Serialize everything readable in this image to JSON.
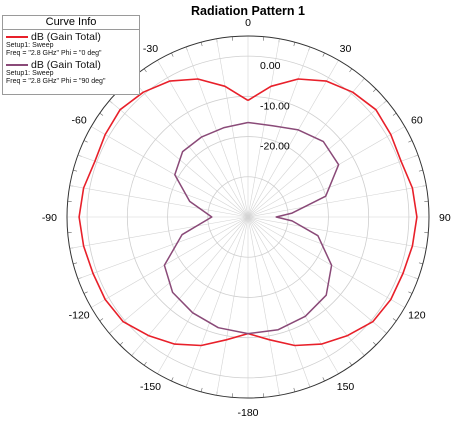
{
  "chart_data": {
    "type": "polar-line",
    "title": "Radiation Pattern 1",
    "angle_ticks": [
      {
        "angle": 0,
        "label": "0"
      },
      {
        "angle": 30,
        "label": "30"
      },
      {
        "angle": 60,
        "label": "60"
      },
      {
        "angle": 90,
        "label": "90"
      },
      {
        "angle": 120,
        "label": "120"
      },
      {
        "angle": 150,
        "label": "150"
      },
      {
        "angle": 180,
        "label": "-180"
      },
      {
        "angle": -150,
        "label": "-150"
      },
      {
        "angle": -120,
        "label": "-120"
      },
      {
        "angle": -90,
        "label": "-90"
      },
      {
        "angle": -60,
        "label": "-60"
      },
      {
        "angle": -30,
        "label": "-30"
      }
    ],
    "radial_range": [
      -40,
      5
    ],
    "radial_ticks": [
      {
        "value": 0,
        "label": "0.00"
      },
      {
        "value": -10,
        "label": "-10.00"
      },
      {
        "value": -20,
        "label": "-20.00"
      },
      {
        "value": -30,
        "label": ""
      }
    ],
    "grid": true,
    "legend": {
      "title": "Curve Info",
      "position": "top-left",
      "entries": [
        {
          "name": "dB (Gain Total)",
          "line1": "Setup1: Sweep",
          "line2": "Freq = \"2.8 GHz\" Phi = \"0 deg\"",
          "color": "#e8202a"
        },
        {
          "name": "dB (Gain Total)",
          "line1": "Setup1: Sweep",
          "line2": "Freq = \"2.8 GHz\" Phi = \"90 deg\"",
          "color": "#8a4a78"
        }
      ]
    },
    "series": [
      {
        "color": "#e8202a",
        "points": [
          [
            0,
            -11
          ],
          [
            10,
            -7
          ],
          [
            20,
            -3.5
          ],
          [
            30,
            -1
          ],
          [
            40,
            0.5
          ],
          [
            50,
            1.5
          ],
          [
            60,
            1
          ],
          [
            70,
            0.5
          ],
          [
            80,
            1.5
          ],
          [
            90,
            2
          ],
          [
            100,
            1.5
          ],
          [
            110,
            1
          ],
          [
            120,
            1
          ],
          [
            130,
            0.5
          ],
          [
            140,
            -1.5
          ],
          [
            150,
            -3.5
          ],
          [
            160,
            -6
          ],
          [
            170,
            -9
          ],
          [
            180,
            -11
          ],
          [
            -170,
            -9
          ],
          [
            -160,
            -6
          ],
          [
            -150,
            -3.5
          ],
          [
            -140,
            -1.5
          ],
          [
            -130,
            0.5
          ],
          [
            -120,
            1
          ],
          [
            -110,
            1
          ],
          [
            -100,
            1.5
          ],
          [
            -90,
            2
          ],
          [
            -80,
            1.5
          ],
          [
            -70,
            0.5
          ],
          [
            -60,
            1
          ],
          [
            -50,
            1.5
          ],
          [
            -40,
            0.5
          ],
          [
            -30,
            -1
          ],
          [
            -20,
            -3.5
          ],
          [
            -10,
            -7
          ],
          [
            0,
            -11
          ]
        ]
      },
      {
        "color": "#8a4a78",
        "points": [
          [
            0,
            -16.5
          ],
          [
            15,
            -16.5
          ],
          [
            30,
            -15
          ],
          [
            45,
            -13.5
          ],
          [
            60,
            -14
          ],
          [
            75,
            -20
          ],
          [
            85,
            -29
          ],
          [
            90,
            -33
          ],
          [
            95,
            -29
          ],
          [
            105,
            -22
          ],
          [
            120,
            -16
          ],
          [
            135,
            -12.5
          ],
          [
            150,
            -11.5
          ],
          [
            165,
            -11
          ],
          [
            180,
            -11
          ],
          [
            -165,
            -11.5
          ],
          [
            -150,
            -12.5
          ],
          [
            -135,
            -13.5
          ],
          [
            -120,
            -16
          ],
          [
            -105,
            -23
          ],
          [
            -90,
            -31
          ],
          [
            -75,
            -25
          ],
          [
            -60,
            -19
          ],
          [
            -45,
            -17
          ],
          [
            -30,
            -17
          ],
          [
            -15,
            -17
          ],
          [
            0,
            -16.5
          ]
        ]
      }
    ]
  }
}
